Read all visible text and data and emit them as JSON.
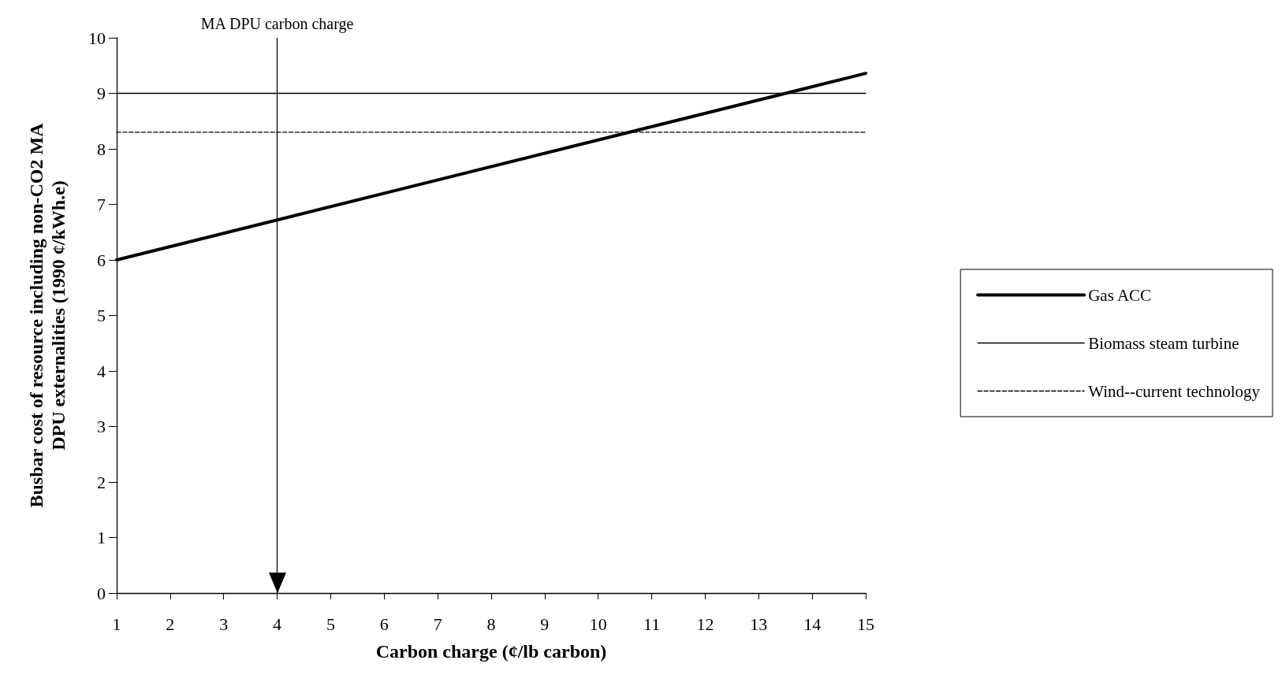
{
  "chart_data": {
    "type": "line",
    "xlabel": "Carbon charge (¢/lb carbon)",
    "ylabel": "Busbar cost of resource including non-CO2 MA DPU externalities (1990 ¢/kWh.e)",
    "xlim": [
      1,
      15
    ],
    "xticks": [
      1,
      2,
      3,
      4,
      5,
      6,
      7,
      8,
      9,
      10,
      11,
      12,
      13,
      14,
      15
    ],
    "ylim": [
      0,
      10
    ],
    "yticks": [
      0,
      1,
      2,
      3,
      4,
      5,
      6,
      7,
      8,
      9,
      10
    ],
    "x": [
      1,
      15
    ],
    "series": [
      {
        "name": "Gas ACC",
        "color": "#000000",
        "values": [
          6.0,
          9.36
        ],
        "line_style": "solid"
      },
      {
        "name": "Biomass steam turbine",
        "color": "#000000",
        "values": [
          9.0,
          9.0
        ],
        "line_style": "solid"
      },
      {
        "name": "Wind--current technology",
        "color": "#000000",
        "values": [
          8.3,
          8.3
        ],
        "line_style": "dashed"
      }
    ],
    "ref_lines": [
      {
        "axis": "x",
        "value": 4,
        "label": "MA DPU carbon charge",
        "color": "#000000",
        "line_style": "solid"
      }
    ],
    "grid": false,
    "legend": "right",
    "marker": "none"
  }
}
